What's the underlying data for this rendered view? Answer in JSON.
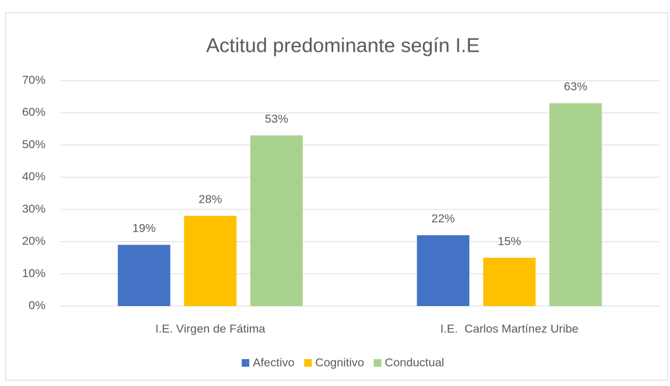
{
  "chart_data": {
    "type": "bar",
    "title": "Actitud predominante segín I.E",
    "categories": [
      "I.E. Virgen de Fátima",
      "I.E.  Carlos Martínez Uribe"
    ],
    "series": [
      {
        "name": "Afectivo",
        "color": "#4472c4",
        "values": [
          19,
          22
        ],
        "value_labels": [
          "19%",
          "22%"
        ]
      },
      {
        "name": "Cognitivo",
        "color": "#ffc000",
        "values": [
          28,
          15
        ],
        "value_labels": [
          "28%",
          "15%"
        ]
      },
      {
        "name": "Conductual",
        "color": "#a9d18e",
        "values": [
          53,
          63
        ],
        "value_labels": [
          "53%",
          "63%"
        ]
      }
    ],
    "ylim": [
      0,
      70
    ],
    "yticks": [
      {
        "value": 0,
        "label": "0%"
      },
      {
        "value": 10,
        "label": "10%"
      },
      {
        "value": 20,
        "label": "20%"
      },
      {
        "value": 30,
        "label": "30%"
      },
      {
        "value": 40,
        "label": "40%"
      },
      {
        "value": 50,
        "label": "50%"
      },
      {
        "value": 60,
        "label": "60%"
      },
      {
        "value": 70,
        "label": "70%"
      }
    ],
    "grid": true,
    "legend": "bottom"
  }
}
